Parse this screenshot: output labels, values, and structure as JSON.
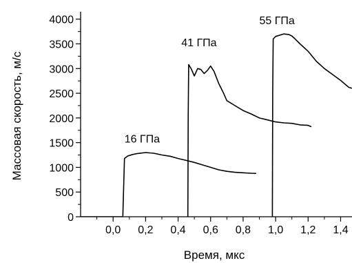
{
  "chart_data": {
    "type": "line",
    "xlabel": "Время, мкс",
    "ylabel": "Массовая скорость, м/с",
    "xlim": [
      -0.2,
      1.47
    ],
    "ylim": [
      0,
      4150
    ],
    "x_major_ticks": [
      0.0,
      0.2,
      0.4,
      0.6,
      0.8,
      1.0,
      1.2,
      1.4
    ],
    "x_tick_labels": [
      "0,0",
      "0,2",
      "0,4",
      "0,6",
      "0,8",
      "1,0",
      "1,2",
      "1,4"
    ],
    "y_major_ticks": [
      0,
      500,
      1000,
      1500,
      2000,
      2500,
      3000,
      3500,
      4000
    ],
    "y_tick_labels": [
      "0",
      "500",
      "1000",
      "1500",
      "2000",
      "2500",
      "3000",
      "3500",
      "4000"
    ],
    "grid": false,
    "series": [
      {
        "name": "16 ГПа",
        "x": [
          -0.2,
          0.06,
          0.065,
          0.07,
          0.09,
          0.12,
          0.15,
          0.2,
          0.25,
          0.3,
          0.35,
          0.4,
          0.45,
          0.5,
          0.55,
          0.6,
          0.65,
          0.7,
          0.75,
          0.8,
          0.85,
          0.88
        ],
        "y": [
          0,
          0,
          600,
          1180,
          1230,
          1260,
          1280,
          1300,
          1285,
          1250,
          1225,
          1180,
          1140,
          1100,
          1050,
          1000,
          950,
          920,
          900,
          890,
          880,
          878
        ]
      },
      {
        "name": "41 ГПа",
        "x": [
          0.46,
          0.462,
          0.465,
          0.48,
          0.5,
          0.52,
          0.54,
          0.56,
          0.58,
          0.6,
          0.62,
          0.65,
          0.68,
          0.7,
          0.75,
          0.8,
          0.85,
          0.9,
          0.95,
          1.0,
          1.05,
          1.1,
          1.15,
          1.2,
          1.22
        ],
        "y": [
          0,
          2000,
          3080,
          3000,
          2850,
          3000,
          2980,
          2900,
          2960,
          3050,
          2950,
          2700,
          2500,
          2350,
          2250,
          2150,
          2080,
          2000,
          1960,
          1920,
          1900,
          1890,
          1860,
          1850,
          1820
        ]
      },
      {
        "name": "55 ГПа",
        "x": [
          0.98,
          0.982,
          0.985,
          1.0,
          1.03,
          1.05,
          1.08,
          1.1,
          1.12,
          1.15,
          1.2,
          1.25,
          1.3,
          1.35,
          1.4,
          1.45,
          1.47
        ],
        "y": [
          0,
          2500,
          3600,
          3650,
          3680,
          3700,
          3690,
          3660,
          3600,
          3500,
          3350,
          3150,
          3000,
          2880,
          2760,
          2620,
          2600
        ]
      }
    ],
    "annotations": [
      {
        "text": "16 ГПа",
        "x": 0.07,
        "y": 1500
      },
      {
        "text": "41 ГПа",
        "x": 0.42,
        "y": 3450
      },
      {
        "text": "55 ГПа",
        "x": 0.9,
        "y": 3900
      }
    ]
  }
}
